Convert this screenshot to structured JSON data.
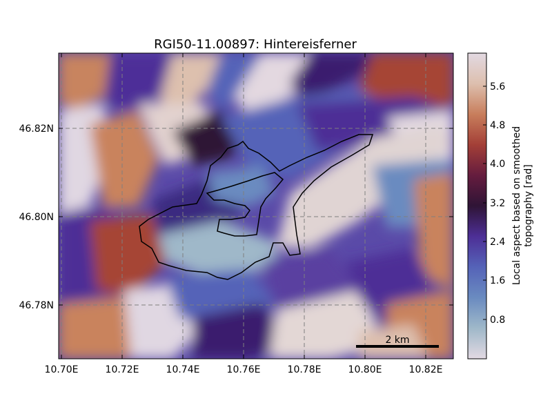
{
  "title": "RGI50-11.00897: Hintereisferner",
  "axes": {
    "x_ticks": [
      "10.70E",
      "10.72E",
      "10.74E",
      "10.76E",
      "10.78E",
      "10.80E",
      "10.82E"
    ],
    "y_ticks": [
      "46.82N",
      "46.80N",
      "46.78N"
    ]
  },
  "scale_bar": {
    "label": "2 km"
  },
  "colorbar": {
    "label_line1": "Local aspect based on smoothed",
    "label_line2": "topography [rad]",
    "ticks": [
      "0.8",
      "1.6",
      "2.4",
      "3.2",
      "4.0",
      "4.8",
      "5.6"
    ],
    "colormap": "twilight",
    "min": 0,
    "max": 6.283
  },
  "colors": {
    "outline": "#000000",
    "grid": "#7f7f7f",
    "cmap_stops": [
      "#e2d9e2",
      "#9fb8c9",
      "#6a8bc0",
      "#5563b8",
      "#4d2f96",
      "#2f1436",
      "#651c3e",
      "#a33f37",
      "#c87e5c",
      "#ddbfae",
      "#e2d9e2"
    ]
  }
}
